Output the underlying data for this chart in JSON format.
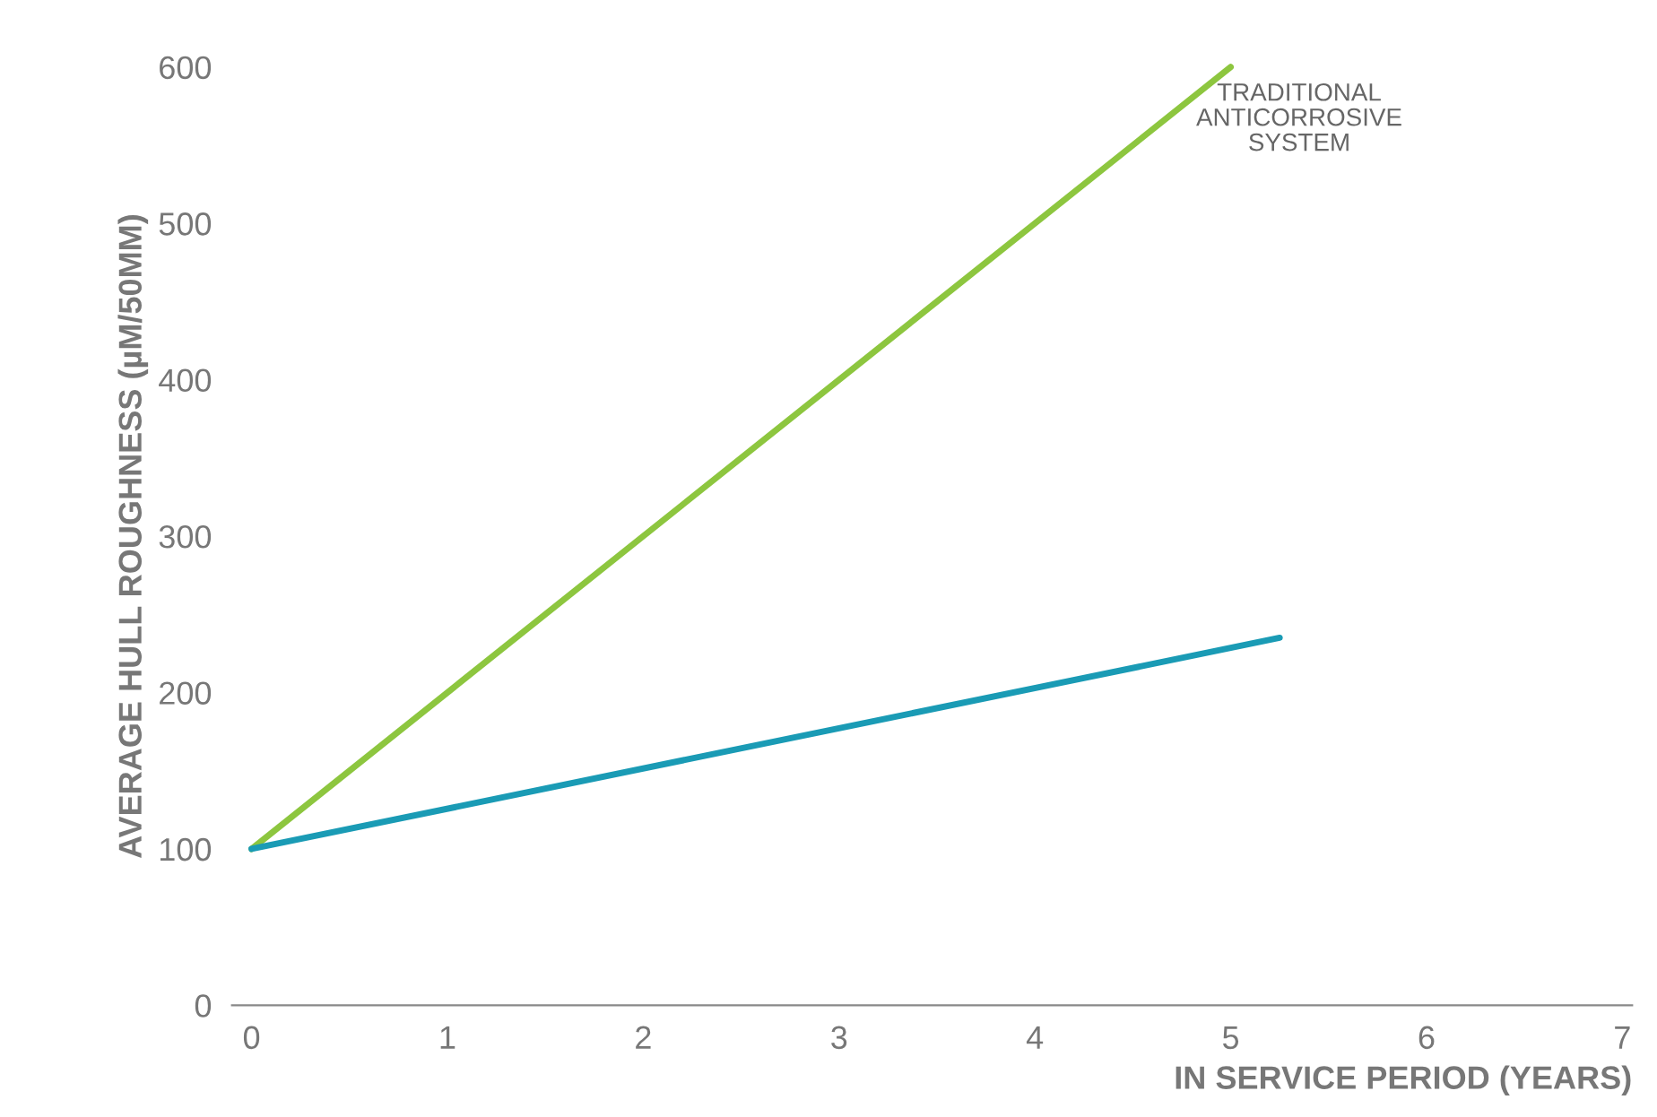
{
  "chart_data": {
    "type": "line",
    "xlabel": "IN SERVICE PERIOD (YEARS)",
    "ylabel": "AVERAGE HULL ROUGHNESS (µM/50MM)",
    "series": [
      {
        "name": "TRADITIONAL\nANTICORROSIVE\nSYSTEM",
        "color": "#8dc63f",
        "x": [
          0,
          5
        ],
        "values": [
          100,
          600
        ]
      },
      {
        "color": "#1a9bb5",
        "x": [
          0,
          5.25
        ],
        "values": [
          100,
          235
        ]
      }
    ],
    "xlim": [
      -0.1,
      7.05
    ],
    "xticks": [
      0,
      1,
      2,
      3,
      4,
      5,
      6,
      7
    ],
    "ylim": [
      0,
      600
    ],
    "yticks": [
      0,
      100,
      200,
      300,
      400,
      500,
      600
    ],
    "grid": false,
    "legend": false,
    "marker": "none",
    "line_style": "solid"
  }
}
